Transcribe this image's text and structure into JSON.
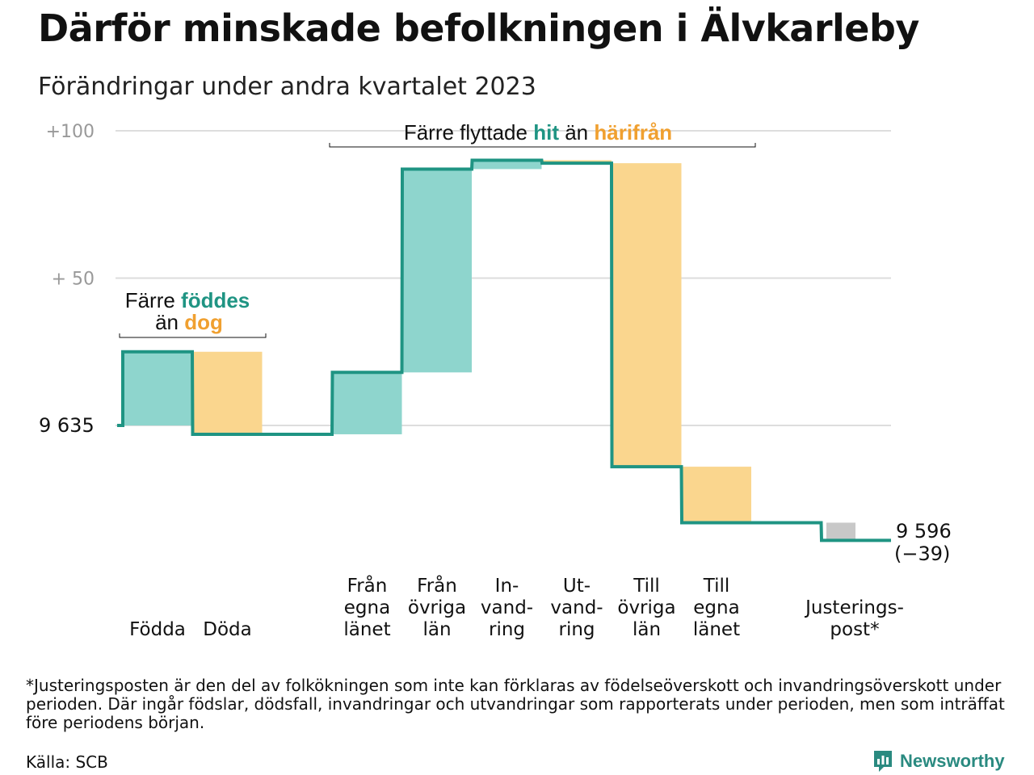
{
  "title": "Därför minskade befolkningen i Älvkarleby",
  "subtitle": "Förändringar under andra kvartalet 2023",
  "footnote": "*Justeringsposten är den del av folkökningen som inte kan förklaras av födelseöverskott och invandringsöverskott under perioden. Där ingår födslar, dödsfall, invandringar och utvandringar som rapporterats under perioden, men som inträffat före periodens början.",
  "source": "Källa: SCB",
  "logo_text": "Newsworthy",
  "colors": {
    "line": "#1f9483",
    "increase": "#8ed5cd",
    "decrease": "#fad68e",
    "adjustment": "#c8c8c8",
    "teal_text": "#1f9483",
    "orange_text": "#f0a030",
    "grid": "#dddddd",
    "tick": "#999999"
  },
  "annotations": {
    "births": {
      "line1_prefix": "Färre ",
      "line1_highlight": "föddes",
      "line2_prefix": "än ",
      "line2_highlight": "dog"
    },
    "migration": {
      "prefix": "Färre flyttade ",
      "highlight1": "hit",
      "middle": " än ",
      "highlight2": "härifrån"
    }
  },
  "chart_data": {
    "type": "waterfall",
    "start_value": 9635,
    "start_label": "9  635",
    "end_value": 9596,
    "end_label": "9 596",
    "end_change_label": "(−39)",
    "ytick_labels": [
      "+100",
      "+  50"
    ],
    "ytick_values": [
      100,
      50
    ],
    "ylim": [
      -53,
      107
    ],
    "grid": true,
    "categories": [
      {
        "label": [
          "Födda"
        ],
        "change": 25,
        "kind": "increase"
      },
      {
        "label": [
          "Döda"
        ],
        "change": -28,
        "kind": "decrease"
      },
      {
        "label": [],
        "change": 0,
        "kind": "gap"
      },
      {
        "label": [
          "Från",
          "egna",
          "länet"
        ],
        "change": 21,
        "kind": "increase"
      },
      {
        "label": [
          "Från",
          "övriga",
          "län"
        ],
        "change": 69,
        "kind": "increase"
      },
      {
        "label": [
          "In-",
          "vand-",
          "ring"
        ],
        "change": 3,
        "kind": "increase"
      },
      {
        "label": [
          "Ut-",
          "vand-",
          "ring"
        ],
        "change": -1,
        "kind": "decrease"
      },
      {
        "label": [
          "Till",
          "övriga",
          "län"
        ],
        "change": -103,
        "kind": "decrease"
      },
      {
        "label": [
          "Till",
          "egna",
          "länet"
        ],
        "change": -19,
        "kind": "decrease"
      },
      {
        "label": [],
        "change": 0,
        "kind": "gap"
      },
      {
        "label": [
          "Justerings-",
          "post*"
        ],
        "change": -6,
        "kind": "adjustment"
      }
    ]
  }
}
